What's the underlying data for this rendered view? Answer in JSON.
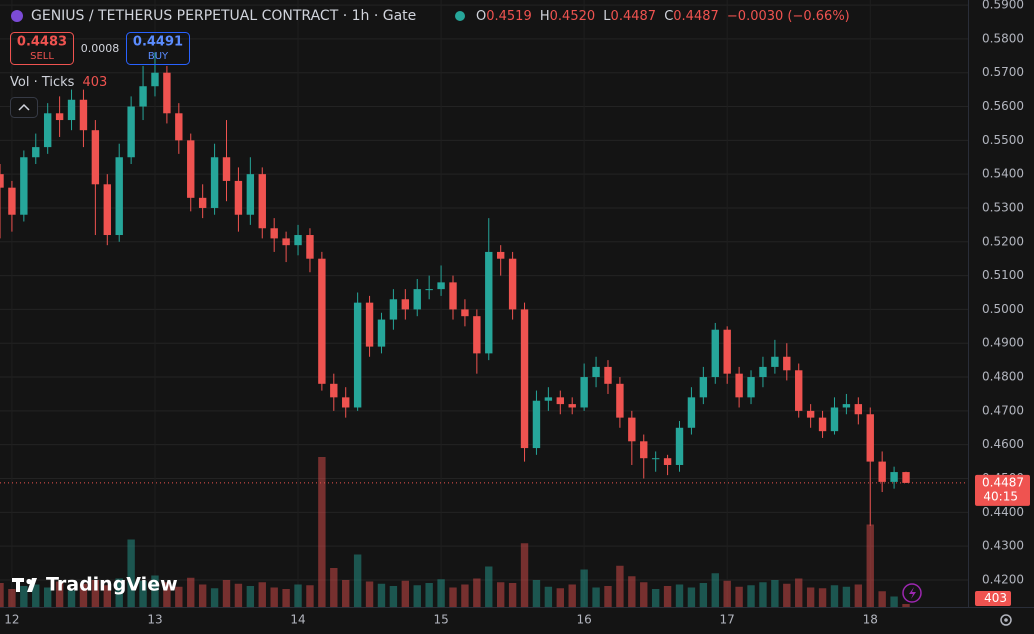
{
  "chart_data": {
    "type": "candlestick",
    "title": "GENIUS / TETHERUS PERPETUAL CONTRACT · 1h · Gate",
    "legend": {
      "o_label": "O",
      "open": 0.4519,
      "h_label": "H",
      "high": 0.452,
      "high_label": "0.4520",
      "l_label": "L",
      "low": 0.4487,
      "c_label": "C",
      "close": 0.4487,
      "change": "−0.0030 (−0.66%)"
    },
    "sell": {
      "price": 0.4483,
      "label": "SELL"
    },
    "spread": 0.0008,
    "buy": {
      "price": 0.4491,
      "label": "BUY"
    },
    "volume_title": "Vol · Ticks",
    "watermark": "TradingView",
    "countdown": "40:15",
    "up_color": "#26a69a",
    "down_color": "#ef5350",
    "grid": true,
    "xlim": [
      0,
      81.2
    ],
    "xticks": [
      {
        "value": 1,
        "label": "12"
      },
      {
        "value": 13,
        "label": "13"
      },
      {
        "value": 25,
        "label": "14"
      },
      {
        "value": 37,
        "label": "15"
      },
      {
        "value": 49,
        "label": "16"
      },
      {
        "value": 61,
        "label": "17"
      },
      {
        "value": 73,
        "label": "18"
      }
    ],
    "ylim": [
      0.412,
      0.5915
    ],
    "yticks": [
      {
        "value": 0.42,
        "label": "0.4200"
      },
      {
        "value": 0.43,
        "label": "0.4300"
      },
      {
        "value": 0.44,
        "label": "0.4400"
      },
      {
        "value": 0.45,
        "label": "0.4500"
      },
      {
        "value": 0.46,
        "label": "0.4600"
      },
      {
        "value": 0.47,
        "label": "0.4700"
      },
      {
        "value": 0.48,
        "label": "0.4800"
      },
      {
        "value": 0.49,
        "label": "0.4900"
      },
      {
        "value": 0.5,
        "label": "0.5000"
      },
      {
        "value": 0.51,
        "label": "0.5100"
      },
      {
        "value": 0.52,
        "label": "0.5200"
      },
      {
        "value": 0.53,
        "label": "0.5300"
      },
      {
        "value": 0.54,
        "label": "0.5400"
      },
      {
        "value": 0.55,
        "label": "0.5500"
      },
      {
        "value": 0.56,
        "label": "0.5600"
      },
      {
        "value": 0.57,
        "label": "0.5700"
      },
      {
        "value": 0.58,
        "label": "0.5800"
      },
      {
        "value": 0.59,
        "label": "0.5900"
      }
    ],
    "open": [
      0.54,
      0.536,
      0.528,
      0.545,
      0.548,
      0.558,
      0.556,
      0.562,
      0.553,
      0.537,
      0.522,
      0.545,
      0.56,
      0.566,
      0.57,
      0.558,
      0.55,
      0.533,
      0.53,
      0.545,
      0.538,
      0.528,
      0.54,
      0.524,
      0.521,
      0.519,
      0.522,
      0.515,
      0.478,
      0.474,
      0.471,
      0.502,
      0.489,
      0.497,
      0.503,
      0.5,
      0.506,
      0.506,
      0.508,
      0.5,
      0.498,
      0.487,
      0.517,
      0.515,
      0.5,
      0.459,
      0.473,
      0.474,
      0.472,
      0.471,
      0.48,
      0.483,
      0.478,
      0.468,
      0.461,
      0.456,
      0.456,
      0.454,
      0.465,
      0.474,
      0.48,
      0.494,
      0.481,
      0.474,
      0.48,
      0.483,
      0.486,
      0.482,
      0.47,
      0.468,
      0.464,
      0.471,
      0.472,
      0.469,
      0.455,
      0.449,
      0.4519
    ],
    "high": [
      0.543,
      0.538,
      0.547,
      0.552,
      0.561,
      0.563,
      0.565,
      0.565,
      0.556,
      0.54,
      0.549,
      0.563,
      0.572,
      0.576,
      0.572,
      0.561,
      0.552,
      0.537,
      0.549,
      0.556,
      0.542,
      0.545,
      0.542,
      0.527,
      0.523,
      0.525,
      0.524,
      0.517,
      0.481,
      0.477,
      0.505,
      0.504,
      0.499,
      0.506,
      0.506,
      0.509,
      0.51,
      0.513,
      0.51,
      0.503,
      0.5,
      0.527,
      0.519,
      0.517,
      0.502,
      0.476,
      0.477,
      0.476,
      0.474,
      0.484,
      0.486,
      0.485,
      0.48,
      0.47,
      0.463,
      0.458,
      0.457,
      0.467,
      0.477,
      0.483,
      0.496,
      0.495,
      0.483,
      0.482,
      0.486,
      0.491,
      0.49,
      0.484,
      0.472,
      0.47,
      0.474,
      0.475,
      0.474,
      0.471,
      0.458,
      0.4535,
      0.452
    ],
    "low": [
      0.521,
      0.523,
      0.526,
      0.543,
      0.546,
      0.551,
      0.553,
      0.548,
      0.522,
      0.519,
      0.52,
      0.543,
      0.556,
      0.563,
      0.555,
      0.546,
      0.529,
      0.527,
      0.528,
      0.532,
      0.523,
      0.525,
      0.521,
      0.517,
      0.514,
      0.516,
      0.511,
      0.476,
      0.47,
      0.468,
      0.47,
      0.486,
      0.487,
      0.494,
      0.497,
      0.498,
      0.503,
      0.504,
      0.497,
      0.495,
      0.481,
      0.485,
      0.51,
      0.497,
      0.455,
      0.457,
      0.47,
      0.469,
      0.469,
      0.47,
      0.477,
      0.475,
      0.465,
      0.454,
      0.45,
      0.452,
      0.451,
      0.452,
      0.463,
      0.472,
      0.478,
      0.478,
      0.471,
      0.472,
      0.477,
      0.481,
      0.479,
      0.468,
      0.465,
      0.462,
      0.463,
      0.469,
      0.466,
      0.436,
      0.446,
      0.447,
      0.4487
    ],
    "close": [
      0.536,
      0.528,
      0.545,
      0.548,
      0.558,
      0.556,
      0.562,
      0.553,
      0.537,
      0.522,
      0.545,
      0.56,
      0.566,
      0.57,
      0.558,
      0.55,
      0.533,
      0.53,
      0.545,
      0.538,
      0.528,
      0.54,
      0.524,
      0.521,
      0.519,
      0.522,
      0.515,
      0.478,
      0.474,
      0.471,
      0.502,
      0.489,
      0.497,
      0.503,
      0.5,
      0.506,
      0.506,
      0.508,
      0.5,
      0.498,
      0.487,
      0.517,
      0.515,
      0.5,
      0.459,
      0.473,
      0.474,
      0.472,
      0.471,
      0.48,
      0.483,
      0.478,
      0.468,
      0.461,
      0.456,
      0.456,
      0.454,
      0.465,
      0.474,
      0.48,
      0.494,
      0.481,
      0.474,
      0.48,
      0.483,
      0.486,
      0.482,
      0.47,
      0.468,
      0.464,
      0.471,
      0.472,
      0.469,
      0.455,
      0.449,
      0.4519,
      0.4487
    ],
    "volume": [
      3200,
      2400,
      2800,
      3000,
      2600,
      3400,
      2200,
      3100,
      3600,
      2900,
      3800,
      9000,
      3500,
      4200,
      3300,
      2700,
      3900,
      3000,
      2500,
      3600,
      3100,
      2800,
      3300,
      2600,
      2400,
      3000,
      2900,
      20000,
      5200,
      3600,
      7000,
      3400,
      3100,
      2800,
      3500,
      2900,
      3200,
      3700,
      2600,
      3000,
      3800,
      5400,
      3300,
      3200,
      8500,
      3600,
      2700,
      2500,
      3000,
      5000,
      2600,
      2800,
      5500,
      4100,
      3300,
      2400,
      2800,
      3000,
      2600,
      3200,
      4500,
      3500,
      2700,
      2900,
      3300,
      3600,
      3100,
      3800,
      2600,
      2500,
      2900,
      2700,
      3000,
      11000,
      2100,
      1400,
      403
    ]
  }
}
